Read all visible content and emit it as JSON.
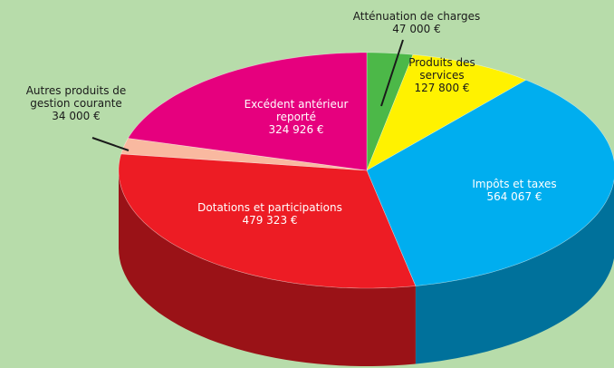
{
  "chart_data": {
    "type": "pie3d",
    "categories": [
      "Atténuation de charges",
      "Produits des services",
      "Impôts et taxes",
      "Dotations et participations",
      "Autres produits de gestion courante",
      "Excédent antérieur reporté"
    ],
    "values": [
      47000,
      127800,
      564067,
      479323,
      34000,
      324926
    ],
    "value_labels": [
      "47 000 €",
      "127 800 €",
      "564 067 €",
      "479 323 €",
      "34 000 €",
      "324 926 €"
    ],
    "colors": [
      "#4cb848",
      "#fff200",
      "#00aeef",
      "#ed1c24",
      "#f9b9a0",
      "#e6007e"
    ]
  }
}
